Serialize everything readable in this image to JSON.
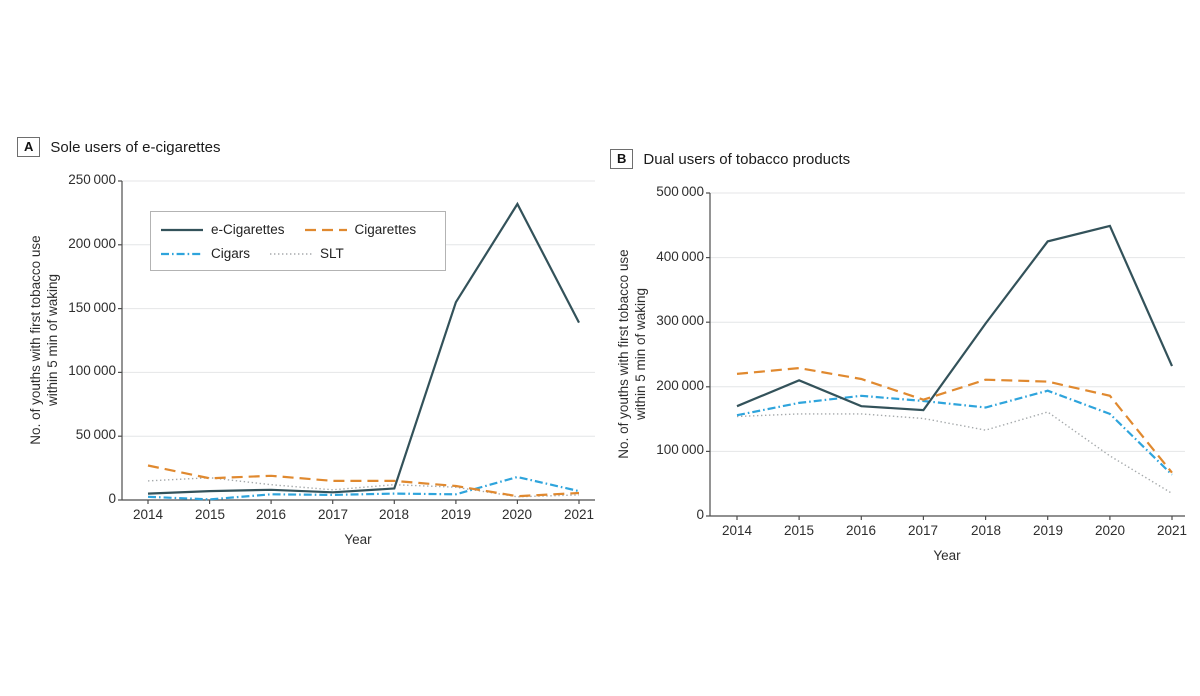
{
  "style": {
    "background": "#ffffff",
    "grid_color": "#e4e6e7",
    "axis_color": "#4d4d4d",
    "text_color": "#2e2e2e",
    "legend_border_color": "#b3b3b3"
  },
  "chart_data": [
    {
      "type": "line",
      "panel_label": "A",
      "title": "Sole users of e-cigarettes",
      "xlabel": "Year",
      "ylabel": "No. of youths with first tobacco use within 5 min of waking",
      "ylabel_lines": [
        "No. of youths with first tobacco use",
        "within 5 min of waking"
      ],
      "x": [
        2014,
        2015,
        2016,
        2017,
        2018,
        2019,
        2020,
        2021
      ],
      "xtick_labels": [
        "2014",
        "2015",
        "2016",
        "2017",
        "2018",
        "2019",
        "2020",
        "2021"
      ],
      "ylim": [
        0,
        250000
      ],
      "ytick_values": [
        0,
        50000,
        100000,
        150000,
        200000,
        250000
      ],
      "ytick_labels": [
        "0",
        "50 000",
        "100 000",
        "150 000",
        "200 000",
        "250 000"
      ],
      "grid": true,
      "legend": {
        "visible": true,
        "position": "upper-left-inside"
      },
      "series": [
        {
          "name": "e-Cigarettes",
          "color": "#33525a",
          "line_style": "solid",
          "values": [
            5000,
            7000,
            8000,
            6000,
            9000,
            155000,
            232000,
            139000
          ]
        },
        {
          "name": "Cigarettes",
          "color": "#e0892f",
          "line_style": "dashed",
          "values": [
            27000,
            17000,
            19000,
            15000,
            15000,
            11000,
            3000,
            5500
          ]
        },
        {
          "name": "Cigars",
          "color": "#2ea4dc",
          "line_style": "dashdot",
          "values": [
            2500,
            500,
            4500,
            4000,
            5000,
            4500,
            18000,
            7000
          ]
        },
        {
          "name": "SLT",
          "color": "#a5a9ab",
          "line_style": "dotted",
          "values": [
            15000,
            17500,
            12000,
            8000,
            12000,
            10000,
            2500,
            4000
          ]
        }
      ]
    },
    {
      "type": "line",
      "panel_label": "B",
      "title": "Dual users of tobacco products",
      "xlabel": "Year",
      "ylabel": "No. of youths with first tobacco use within 5 min of waking",
      "ylabel_lines": [
        "No. of youths with first tobacco use",
        "within 5 min of waking"
      ],
      "x": [
        2014,
        2015,
        2016,
        2017,
        2018,
        2019,
        2020,
        2021
      ],
      "xtick_labels": [
        "2014",
        "2015",
        "2016",
        "2017",
        "2018",
        "2019",
        "2020",
        "2021"
      ],
      "ylim": [
        0,
        500000
      ],
      "ytick_values": [
        0,
        100000,
        200000,
        300000,
        400000,
        500000
      ],
      "ytick_labels": [
        "0",
        "100 000",
        "200 000",
        "300 000",
        "400 000",
        "500 000"
      ],
      "grid": true,
      "legend": {
        "visible": false
      },
      "series": [
        {
          "name": "e-Cigarettes",
          "color": "#33525a",
          "line_style": "solid",
          "values": [
            170000,
            210000,
            170000,
            164000,
            298000,
            425000,
            449000,
            232000
          ]
        },
        {
          "name": "Cigarettes",
          "color": "#e0892f",
          "line_style": "dashed",
          "values": [
            220000,
            229000,
            212000,
            180000,
            211000,
            208000,
            186000,
            67000
          ]
        },
        {
          "name": "Cigars",
          "color": "#2ea4dc",
          "line_style": "dashdot",
          "values": [
            156000,
            175000,
            186000,
            178000,
            168000,
            194000,
            158000,
            64000
          ]
        },
        {
          "name": "SLT",
          "color": "#a5a9ab",
          "line_style": "dotted",
          "values": [
            154000,
            158000,
            158000,
            151000,
            133000,
            161000,
            93000,
            35000
          ]
        }
      ]
    }
  ]
}
